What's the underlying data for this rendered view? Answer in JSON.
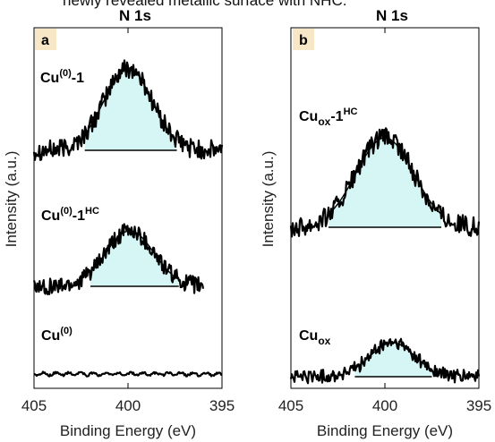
{
  "caption_fragment": "newly revealed metallic surface with NHC.",
  "chart_data": [
    {
      "type": "line",
      "panel_label": "a",
      "title": "N 1s",
      "xlabel": "Binding Energy (eV)",
      "ylabel": "Intensity (a.u.)",
      "xlim": [
        405,
        395
      ],
      "x_reversed": true,
      "xticks": [
        405,
        400,
        395
      ],
      "yticks": [],
      "grid": false,
      "colors": {
        "fill": "#d6f6f6",
        "line": "#000000",
        "label_bg": "#f7e7c6"
      },
      "series": [
        {
          "label_main": "Cu",
          "label_sup": "(0)",
          "label_tail": "-1",
          "label_tail_sup": "",
          "peak_center": 400.0,
          "peak_height": 0.92,
          "fwhm": 3.0,
          "x_range": [
            405,
            395
          ],
          "noise": 0.07,
          "offset": 0.7,
          "fill_range": [
            402.3,
            397.4
          ]
        },
        {
          "label_main": "Cu",
          "label_sup": "(0)",
          "label_tail": "-1",
          "label_tail_sup": "HC",
          "peak_center": 399.9,
          "peak_height": 0.62,
          "fwhm": 3.0,
          "x_range": [
            405,
            396
          ],
          "noise": 0.06,
          "offset": 0.36,
          "fill_range": [
            402.0,
            397.3
          ]
        },
        {
          "label_main": "Cu",
          "label_sup": "(0)",
          "label_tail": "",
          "label_tail_sup": "",
          "peak_center": 400.0,
          "peak_height": 0.0,
          "fwhm": 3.0,
          "x_range": [
            405,
            395
          ],
          "noise": 0.012,
          "offset": 0.06,
          "fill_range": null
        }
      ]
    },
    {
      "type": "line",
      "panel_label": "b",
      "title": "N 1s",
      "xlabel": "Binding Energy (eV)",
      "ylabel": "Intensity (a.u.)",
      "xlim": [
        405,
        395
      ],
      "x_reversed": true,
      "xticks": [
        405,
        400,
        395
      ],
      "yticks": [],
      "grid": false,
      "colors": {
        "fill": "#d6f6f6",
        "line": "#000000",
        "label_bg": "#f7e7c6"
      },
      "series": [
        {
          "label_main": "Cu",
          "label_sub": "ox",
          "label_tail": "-1",
          "label_tail_sup": "HC",
          "peak_center": 400.0,
          "peak_height": 1.0,
          "fwhm": 3.6,
          "x_range": [
            405,
            395
          ],
          "noise": 0.07,
          "offset": 0.42,
          "fill_range": [
            403.0,
            397.0
          ]
        },
        {
          "label_main": "Cu",
          "label_sub": "ox",
          "label_tail": "",
          "label_tail_sup": "",
          "peak_center": 399.6,
          "peak_height": 0.38,
          "fwhm": 2.8,
          "x_range": [
            405,
            395
          ],
          "noise": 0.05,
          "offset": 0.05,
          "fill_range": [
            401.6,
            397.5
          ]
        }
      ]
    }
  ]
}
